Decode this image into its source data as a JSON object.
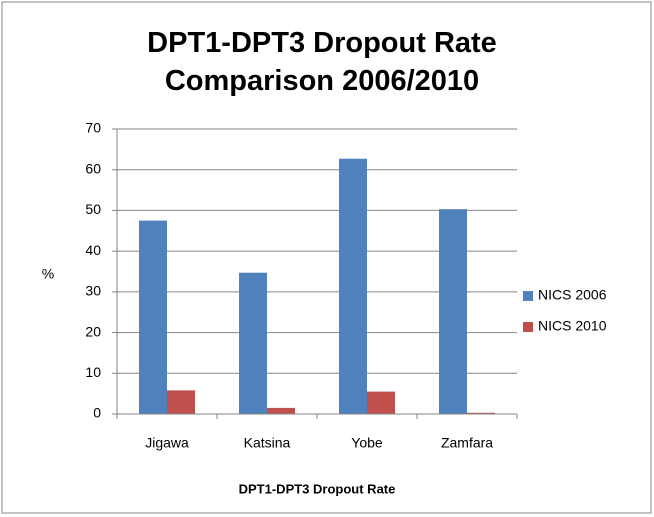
{
  "chart_data": {
    "type": "bar",
    "title": "DPT1-DPT3 Dropout Rate Comparison 2006/2010",
    "x_label": "DPT1-DPT3 Dropout Rate",
    "y_label": "%",
    "categories": [
      "Jigawa",
      "Katsina",
      "Yobe",
      "Zamfara"
    ],
    "series": [
      {
        "name": "NICS 2006",
        "color": "#4f81bd",
        "values": [
          47.5,
          34.7,
          62.7,
          50.3
        ]
      },
      {
        "name": "NICS 2010",
        "color": "#c0504d",
        "values": [
          5.8,
          1.5,
          5.5,
          0.3
        ]
      }
    ],
    "ylim": [
      0,
      70
    ],
    "yticks": [
      0,
      10,
      20,
      30,
      40,
      50,
      60,
      70
    ],
    "grid": true,
    "legend": "right"
  }
}
